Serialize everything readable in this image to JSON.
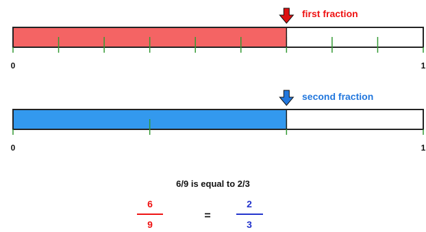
{
  "colors": {
    "first": "#f46464",
    "second": "#3399ee",
    "arrow_first": "#dd1111",
    "arrow_second": "#2277dd",
    "tick": "#339933"
  },
  "bars": [
    {
      "label": "first fraction",
      "numerator": 6,
      "denominator": 9,
      "start_label": "0",
      "end_label": "1",
      "fill_color": "#f46464",
      "arrow_color": "#dd1111",
      "label_color": "#ee1111",
      "icon": "arrow-down-icon"
    },
    {
      "label": "second fraction",
      "numerator": 2,
      "denominator": 3,
      "start_label": "0",
      "end_label": "1",
      "fill_color": "#3399ee",
      "arrow_color": "#2277dd",
      "label_color": "#2277dd",
      "icon": "arrow-down-icon"
    }
  ],
  "statement": "6/9 is equal to 2/3",
  "equation": {
    "left": {
      "numerator": "6",
      "denominator": "9",
      "color": "#ee1111"
    },
    "equals": "=",
    "right": {
      "numerator": "2",
      "denominator": "3",
      "color": "#2233cc"
    }
  }
}
